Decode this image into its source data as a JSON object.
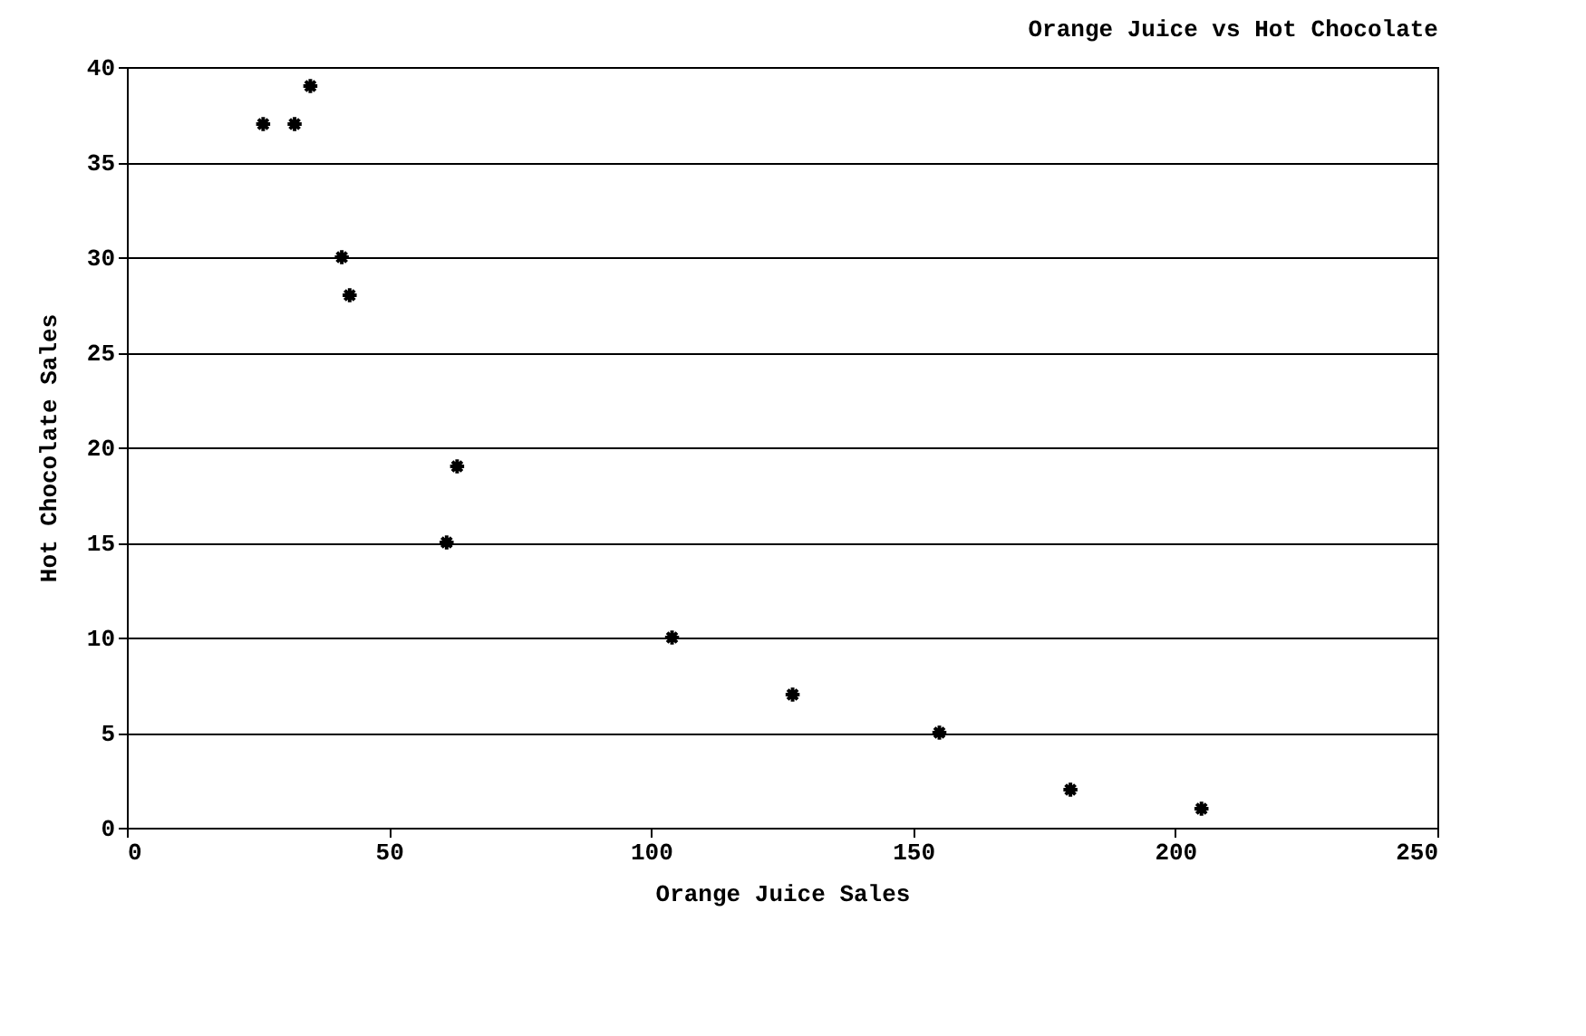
{
  "chart_data": {
    "type": "scatter",
    "title": "Orange Juice vs Hot Chocolate",
    "xlabel": "Orange Juice Sales",
    "ylabel": "Hot Chocolate Sales",
    "x": [
      26,
      32,
      35,
      41,
      42.5,
      63,
      61,
      104,
      127,
      155,
      180,
      205
    ],
    "series": [
      {
        "color": "#000000",
        "values": [
          37,
          37,
          39,
          30,
          28,
          19,
          15,
          10,
          7,
          5,
          2,
          1
        ]
      }
    ],
    "xlim": [
      0,
      250
    ],
    "xticks": [
      0,
      50,
      100,
      150,
      200,
      250
    ],
    "ylim": [
      0,
      40
    ],
    "yticks": [
      0,
      5,
      10,
      15,
      20,
      25,
      30,
      35,
      40
    ],
    "grid": "y",
    "marker": "cross"
  }
}
